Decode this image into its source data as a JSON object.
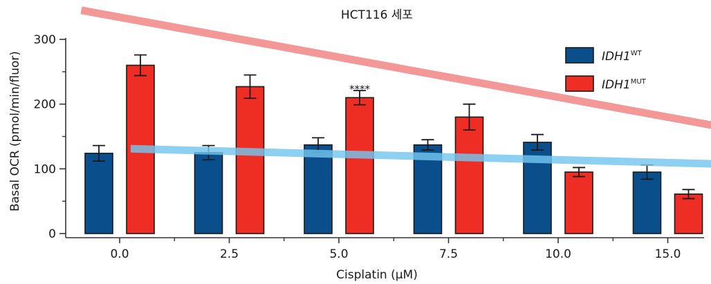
{
  "chart_data": {
    "type": "bar",
    "title": "HCT116 세포",
    "xlabel": "Cisplatin (μM)",
    "ylabel": "Basal OCR (pmol/min/fluor)",
    "ylim": [
      0,
      300
    ],
    "yticks": [
      0,
      100,
      200,
      300
    ],
    "categories": [
      "0.0",
      "2.5",
      "5.0",
      "7.5",
      "10.0",
      "15.0"
    ],
    "series": [
      {
        "name_main": "IDH1",
        "name_sup": "WT",
        "color": "#0a4f8c",
        "values": [
          124,
          125,
          137,
          137,
          141,
          95
        ],
        "errors": [
          12,
          11,
          11,
          8,
          12,
          11
        ]
      },
      {
        "name_main": "IDH1",
        "name_sup": "MUT",
        "color": "#ee2e24",
        "values": [
          260,
          227,
          210,
          180,
          95,
          61
        ],
        "errors": [
          16,
          18,
          11,
          20,
          7,
          7
        ]
      }
    ],
    "annotation": {
      "text": "****",
      "category": "5.0",
      "y": 233
    },
    "trend_arrows": [
      {
        "series": "IDH1 MUT",
        "color": "#f28080",
        "from": [
          -0.35,
          345
        ],
        "to": [
          7.1,
          115
        ]
      },
      {
        "series": "IDH1 WT",
        "color": "#74c6ef",
        "from": [
          0.1,
          131
        ],
        "to": [
          6.05,
          105
        ]
      }
    ],
    "legend": "top-right"
  }
}
